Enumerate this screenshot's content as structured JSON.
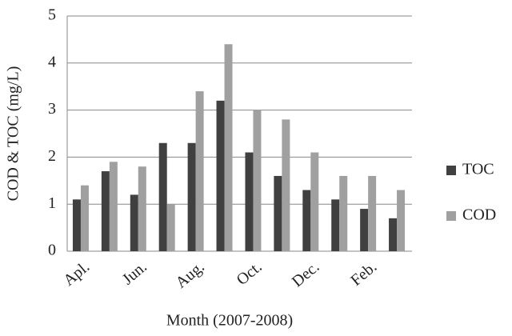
{
  "chart_data": {
    "type": "bar",
    "x_label": "Month (2007-2008)",
    "y_label": "COD & TOC (mg/L)",
    "categories": [
      "Apl.",
      null,
      "Jun.",
      null,
      "Aug.",
      null,
      "Oct.",
      null,
      "Dec.",
      null,
      "Feb.",
      null
    ],
    "series": [
      {
        "name": "TOC",
        "color": "#404040",
        "values": [
          1.1,
          1.7,
          1.2,
          2.3,
          2.3,
          3.2,
          2.1,
          1.6,
          1.3,
          1.1,
          0.9,
          0.7
        ]
      },
      {
        "name": "COD",
        "color": "#a0a0a0",
        "values": [
          1.4,
          1.9,
          1.8,
          1.0,
          3.4,
          4.4,
          3.0,
          2.8,
          2.1,
          1.6,
          1.6,
          1.3
        ]
      }
    ],
    "ylim": [
      0,
      5
    ],
    "yticks": [
      0,
      1,
      2,
      3,
      4,
      5
    ],
    "grid": true,
    "legend": "right"
  }
}
